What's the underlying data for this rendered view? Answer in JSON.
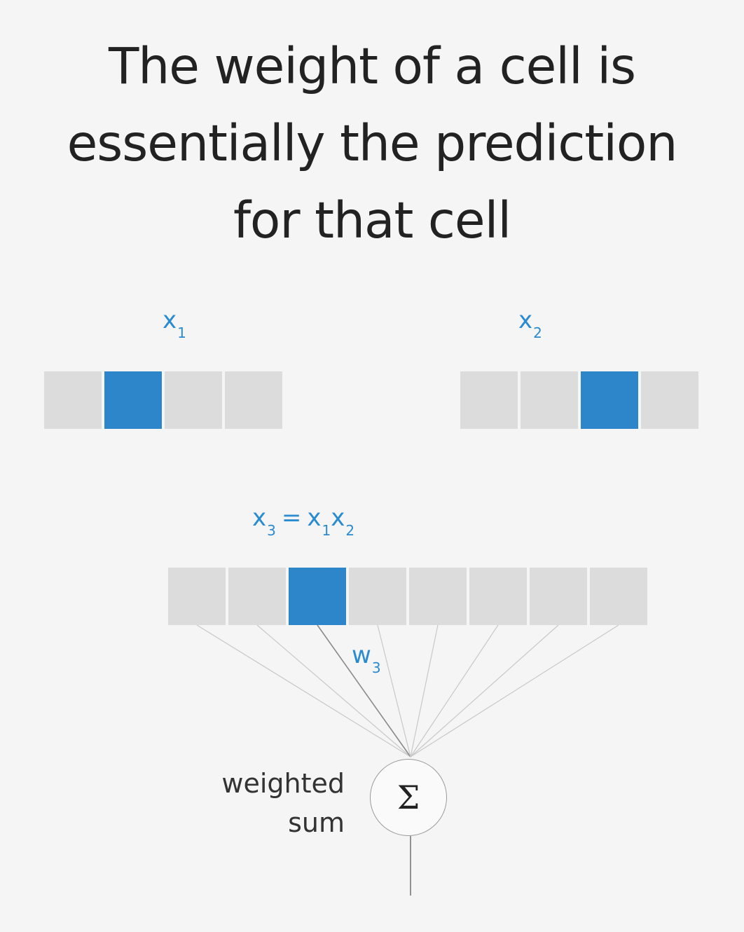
{
  "title_lines": [
    "The weight of a cell is",
    "essentially the prediction",
    "for that cell"
  ],
  "x1": {
    "var": "x",
    "sub": "1",
    "cells": 4,
    "active_index": 1
  },
  "x2": {
    "var": "x",
    "sub": "2",
    "cells": 4,
    "active_index": 2
  },
  "x3": {
    "var": "x",
    "sub": "3",
    "eq": "=",
    "rhs_a_var": "x",
    "rhs_a_sub": "1",
    "rhs_b_var": "x",
    "rhs_b_sub": "2",
    "cells": 8,
    "active_index": 2
  },
  "w3": {
    "var": "w",
    "sub": "3"
  },
  "sum": {
    "symbol": "Σ",
    "label_line1": "weighted",
    "label_line2": "sum"
  },
  "colors": {
    "active_cell": "#2c86c9",
    "inactive_cell": "#dcdcdc",
    "label": "#2a8bd0",
    "background": "#f5f5f5"
  }
}
